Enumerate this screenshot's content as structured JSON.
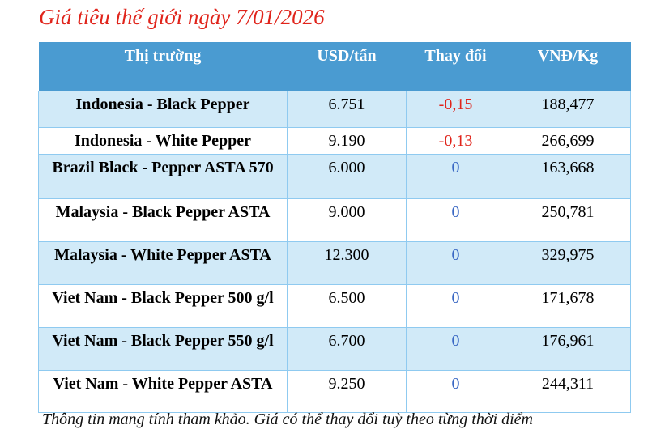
{
  "title": "Giá tiêu thế giới ngày 7/01/2026",
  "columns": [
    "Thị trường",
    "USD/tấn",
    "Thay đổi",
    "VNĐ/Kg"
  ],
  "rows": [
    {
      "market": "Indonesia - Black Pepper",
      "usd": "6.751",
      "change": "-0,15",
      "vnd": "188,477"
    },
    {
      "market": "Indonesia - White Pepper",
      "usd": "9.190",
      "change": "-0,13",
      "vnd": "266,699"
    },
    {
      "market": "Brazil Black - Pepper ASTA 570",
      "usd": "6.000",
      "change": "0",
      "vnd": "163,668"
    },
    {
      "market": "Malaysia - Black Pepper ASTA",
      "usd": "9.000",
      "change": "0",
      "vnd": "250,781"
    },
    {
      "market": "Malaysia - White Pepper ASTA",
      "usd": "12.300",
      "change": "0",
      "vnd": "329,975"
    },
    {
      "market": "Viet Nam - Black Pepper 500 g/l",
      "usd": "6.500",
      "change": "0",
      "vnd": "171,678"
    },
    {
      "market": "Viet Nam - Black Pepper 550 g/l",
      "usd": "6.700",
      "change": "0",
      "vnd": "176,961"
    },
    {
      "market": "Viet Nam - White Pepper ASTA",
      "usd": "9.250",
      "change": "0",
      "vnd": "244,311"
    }
  ],
  "footer": "Thông tin mang tính tham khảo. Giá có thể thay đổi tuỳ theo từng thời điểm",
  "colors": {
    "header": "#4a9bd1",
    "row_alt": "#d1eaf8",
    "negative": "#e0241b",
    "zero": "#3a68c4",
    "title": "#e0241b"
  }
}
